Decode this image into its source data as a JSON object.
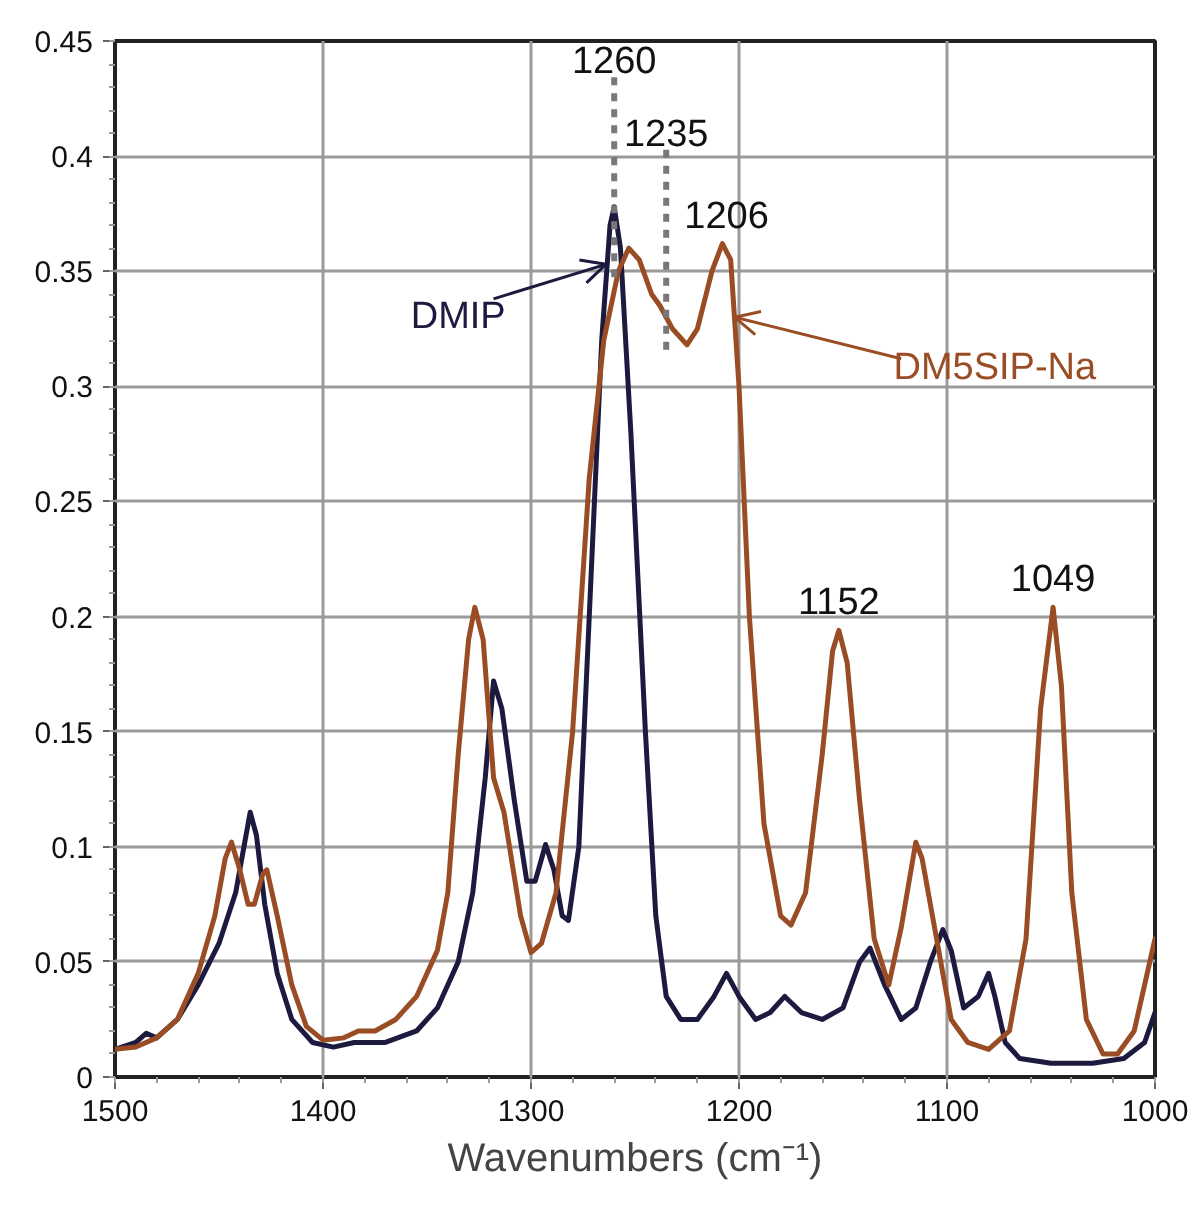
{
  "chart_data": {
    "type": "line",
    "xlabel": "Wavenumbers (cm⁻¹)",
    "xlim": [
      1500,
      1000
    ],
    "xticks": [
      1500,
      1400,
      1300,
      1200,
      1100,
      1000
    ],
    "ylim": [
      0,
      0.45
    ],
    "yticks": [
      0,
      0.05,
      0.1,
      0.15,
      0.2,
      0.25,
      0.3,
      0.35,
      0.4,
      0.45
    ],
    "grid": true,
    "marker": "none",
    "line_style": "solid",
    "series": [
      {
        "name": "DMIP",
        "color": "#1c1a3e",
        "x": [
          1500,
          1490,
          1485,
          1480,
          1470,
          1460,
          1450,
          1442,
          1438,
          1435,
          1432,
          1428,
          1422,
          1415,
          1405,
          1395,
          1385,
          1370,
          1355,
          1345,
          1335,
          1328,
          1322,
          1318,
          1314,
          1308,
          1302,
          1298,
          1293,
          1289,
          1285,
          1282,
          1277,
          1272,
          1266,
          1262,
          1260,
          1257,
          1252,
          1245,
          1240,
          1235,
          1228,
          1220,
          1212,
          1206,
          1200,
          1192,
          1185,
          1178,
          1170,
          1160,
          1150,
          1142,
          1137,
          1130,
          1122,
          1115,
          1108,
          1102,
          1098,
          1092,
          1085,
          1080,
          1077,
          1072,
          1065,
          1050,
          1030,
          1015,
          1005,
          1000
        ],
        "values": [
          0.012,
          0.015,
          0.019,
          0.017,
          0.025,
          0.04,
          0.058,
          0.08,
          0.1,
          0.115,
          0.105,
          0.075,
          0.045,
          0.025,
          0.015,
          0.013,
          0.015,
          0.015,
          0.02,
          0.03,
          0.05,
          0.08,
          0.13,
          0.172,
          0.16,
          0.12,
          0.085,
          0.085,
          0.101,
          0.09,
          0.07,
          0.068,
          0.1,
          0.2,
          0.32,
          0.37,
          0.378,
          0.36,
          0.28,
          0.15,
          0.07,
          0.035,
          0.025,
          0.025,
          0.035,
          0.045,
          0.035,
          0.025,
          0.028,
          0.035,
          0.028,
          0.025,
          0.03,
          0.05,
          0.056,
          0.04,
          0.025,
          0.03,
          0.05,
          0.064,
          0.055,
          0.03,
          0.035,
          0.045,
          0.035,
          0.015,
          0.008,
          0.006,
          0.006,
          0.008,
          0.015,
          0.028
        ]
      },
      {
        "name": "DM5SIP-Na",
        "color": "#9a4d25",
        "x": [
          1500,
          1490,
          1480,
          1470,
          1460,
          1452,
          1447,
          1444,
          1440,
          1436,
          1433,
          1429,
          1427,
          1422,
          1415,
          1408,
          1400,
          1390,
          1383,
          1375,
          1365,
          1355,
          1345,
          1340,
          1335,
          1330,
          1327,
          1323,
          1318,
          1313,
          1305,
          1300,
          1295,
          1288,
          1280,
          1272,
          1265,
          1258,
          1253,
          1248,
          1242,
          1238,
          1232,
          1225,
          1220,
          1213,
          1208,
          1204,
          1200,
          1195,
          1188,
          1180,
          1175,
          1168,
          1160,
          1155,
          1152,
          1148,
          1142,
          1135,
          1128,
          1122,
          1115,
          1112,
          1105,
          1098,
          1090,
          1080,
          1070,
          1062,
          1055,
          1049,
          1045,
          1040,
          1033,
          1025,
          1018,
          1010,
          1005,
          1000
        ],
        "values": [
          0.012,
          0.013,
          0.017,
          0.025,
          0.045,
          0.07,
          0.095,
          0.102,
          0.09,
          0.075,
          0.075,
          0.088,
          0.09,
          0.07,
          0.04,
          0.022,
          0.016,
          0.017,
          0.02,
          0.02,
          0.025,
          0.035,
          0.055,
          0.08,
          0.14,
          0.19,
          0.204,
          0.19,
          0.13,
          0.115,
          0.07,
          0.054,
          0.058,
          0.08,
          0.15,
          0.26,
          0.32,
          0.35,
          0.36,
          0.355,
          0.34,
          0.335,
          0.325,
          0.318,
          0.325,
          0.35,
          0.362,
          0.355,
          0.3,
          0.2,
          0.11,
          0.07,
          0.066,
          0.08,
          0.14,
          0.185,
          0.194,
          0.18,
          0.12,
          0.06,
          0.04,
          0.065,
          0.102,
          0.095,
          0.06,
          0.025,
          0.015,
          0.012,
          0.02,
          0.06,
          0.16,
          0.204,
          0.17,
          0.08,
          0.025,
          0.01,
          0.01,
          0.02,
          0.04,
          0.06
        ]
      }
    ],
    "ref_lines": [
      {
        "axis": "x",
        "value": 1260,
        "label": "1260",
        "line_style": "dashed"
      },
      {
        "axis": "x",
        "value": 1235,
        "label": "1235",
        "line_style": "dashed"
      }
    ],
    "annotations": [
      {
        "text": "1206",
        "x": 1206,
        "y": 0.362
      },
      {
        "text": "1152",
        "x": 1152,
        "y": 0.194
      },
      {
        "text": "1049",
        "x": 1049,
        "y": 0.204
      }
    ]
  }
}
